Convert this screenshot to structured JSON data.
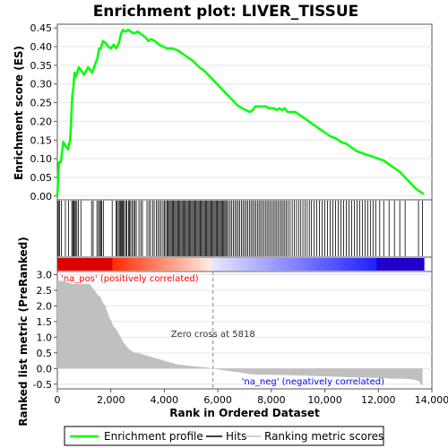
{
  "chart_data": {
    "type": "line",
    "title": "Enrichment plot: LIVER_TISSUE",
    "top_panel": {
      "ylabel": "Enrichment score (ES)",
      "ylim": [
        -0.01,
        0.46
      ],
      "yticks": [
        "0.00",
        "0.05",
        "0.10",
        "0.15",
        "0.20",
        "0.25",
        "0.30",
        "0.35",
        "0.40",
        "0.45"
      ],
      "series": [
        {
          "name": "Enrichment profile",
          "color": "#00ff00",
          "x": [
            0,
            60,
            130,
            220,
            300,
            400,
            480,
            520,
            560,
            600,
            640,
            700,
            800,
            900,
            1000,
            1150,
            1300,
            1400,
            1500,
            1560,
            1620,
            1700,
            1800,
            1900,
            2000,
            2100,
            2200,
            2300,
            2380,
            2450,
            2550,
            2650,
            2750,
            2850,
            3000,
            3100,
            3200,
            3300,
            3400,
            3500,
            3650,
            3800,
            3950,
            4100,
            4300,
            4500,
            4700,
            4900,
            5100,
            5300,
            5500,
            5700,
            5900,
            6100,
            6300,
            6500,
            6700,
            6900,
            7050,
            7200,
            7300,
            7400,
            7500,
            7600,
            7700,
            7800,
            7900,
            8000,
            8100,
            8200,
            8300,
            8400,
            8500,
            8600,
            8700,
            8800,
            8900,
            9000,
            9100,
            9200,
            9400,
            9600,
            9800,
            10000,
            10200,
            10400,
            10600,
            10800,
            11000,
            11200,
            11400,
            11600,
            11800,
            12000,
            12200,
            12400,
            12600,
            12800,
            13000,
            13200,
            13400,
            13600,
            13700
          ],
          "y": [
            0.0,
            0.09,
            0.09,
            0.145,
            0.135,
            0.125,
            0.15,
            0.21,
            0.27,
            0.29,
            0.33,
            0.32,
            0.345,
            0.335,
            0.325,
            0.345,
            0.33,
            0.35,
            0.37,
            0.395,
            0.395,
            0.415,
            0.41,
            0.4,
            0.395,
            0.405,
            0.395,
            0.41,
            0.435,
            0.445,
            0.44,
            0.445,
            0.44,
            0.435,
            0.44,
            0.435,
            0.43,
            0.425,
            0.415,
            0.42,
            0.415,
            0.405,
            0.4,
            0.395,
            0.395,
            0.39,
            0.38,
            0.37,
            0.36,
            0.345,
            0.335,
            0.32,
            0.305,
            0.29,
            0.275,
            0.26,
            0.245,
            0.235,
            0.23,
            0.225,
            0.23,
            0.24,
            0.24,
            0.24,
            0.24,
            0.24,
            0.235,
            0.235,
            0.235,
            0.23,
            0.235,
            0.23,
            0.235,
            0.225,
            0.225,
            0.225,
            0.225,
            0.22,
            0.215,
            0.21,
            0.2,
            0.19,
            0.18,
            0.17,
            0.16,
            0.155,
            0.145,
            0.14,
            0.13,
            0.12,
            0.115,
            0.11,
            0.105,
            0.1,
            0.095,
            0.085,
            0.075,
            0.065,
            0.05,
            0.035,
            0.02,
            0.01,
            0.005
          ]
        }
      ]
    },
    "hits_panel": {
      "legend_name": "Hits",
      "hit_ranks": [
        10,
        40,
        80,
        150,
        300,
        420,
        540,
        580,
        610,
        640,
        680,
        730,
        790,
        880,
        1280,
        1340,
        1480,
        1540,
        1580,
        1630,
        1660,
        1720,
        2050,
        2200,
        2230,
        2280,
        2320,
        2360,
        2400,
        2430,
        2470,
        2500,
        2560,
        2600,
        2660,
        2700,
        2740,
        2800,
        2850,
        2900,
        2950,
        3050,
        3120,
        3180,
        3350,
        3420,
        3480,
        3560,
        3620,
        3700,
        3760,
        3820,
        3880,
        3950,
        4000,
        4050,
        4100,
        4140,
        4180,
        4220,
        4260,
        4300,
        4340,
        4380,
        4420,
        4460,
        4500,
        4540,
        4580,
        4620,
        4660,
        4700,
        4740,
        4780,
        4820,
        4860,
        4900,
        4940,
        4980,
        5020,
        5060,
        5100,
        5140,
        5180,
        5220,
        5260,
        5300,
        5340,
        5380,
        5420,
        5460,
        5500,
        5540,
        5580,
        5620,
        5660,
        5700,
        5740,
        5780,
        5820,
        5860,
        5900,
        5940,
        5980,
        6020,
        6060,
        6100,
        6140,
        6180,
        6220,
        6260,
        6300,
        6340,
        6400,
        6460,
        6520,
        6580,
        6640,
        6700,
        6760,
        6820,
        6880,
        6940,
        7000,
        7060,
        7120,
        7180,
        7240,
        7300,
        7360,
        7420,
        7480,
        7540,
        7600,
        7660,
        7720,
        7780,
        7840,
        7900,
        7960,
        8020,
        8080,
        8140,
        8200,
        8260,
        8320,
        8380,
        8440,
        8500,
        8560,
        8620,
        8700,
        8780,
        8860,
        8940,
        9020,
        9100,
        9180,
        9260,
        9340,
        9420,
        9500,
        9600,
        9700,
        9800,
        9900,
        10000,
        10100,
        10200,
        10300,
        10400,
        10500,
        10600,
        10700,
        10800,
        10900,
        11000,
        11100,
        11200,
        11300,
        11400,
        11500,
        11600,
        11700,
        11800,
        11900,
        12050,
        12200,
        12400,
        12600,
        12800,
        13000,
        13500,
        13650
      ]
    },
    "ranked_panel": {
      "ylabel": "Ranked list metric (PreRanked)",
      "xlabel": "Rank in Ordered Dataset",
      "xlim": [
        0,
        14000
      ],
      "xticks": [
        0,
        2000,
        4000,
        6000,
        8000,
        10000,
        12000,
        14000
      ],
      "xtick_labels": [
        "0",
        "2,000",
        "4,000",
        "6,000",
        "8,000",
        "10,000",
        "12,000",
        "14,000"
      ],
      "ylim": [
        -0.65,
        3.1
      ],
      "yticks": [
        "3.0",
        "2.5",
        "2.0",
        "1.5",
        "1.0",
        "0.5",
        "0.0",
        "-0.5"
      ],
      "metric_x": [
        0,
        200,
        400,
        600,
        800,
        1000,
        1200,
        1400,
        1500,
        1600,
        1700,
        1800,
        1850,
        1900,
        1950,
        2000,
        2050,
        2100,
        2200,
        2300,
        2400,
        2500,
        2600,
        2700,
        2800,
        2900,
        3000,
        3200,
        3400,
        3600,
        3800,
        4000,
        4200,
        4400,
        4600,
        4800,
        5000,
        5200,
        5400,
        5600,
        5818,
        6000,
        6200,
        6400,
        6600,
        6800,
        7000,
        7200,
        7500,
        8000,
        9000,
        10000,
        11000,
        12000,
        12500,
        13000,
        13300,
        13500,
        13650
      ],
      "metric_y": [
        2.8,
        2.8,
        2.75,
        2.7,
        2.7,
        2.7,
        2.7,
        2.5,
        2.35,
        2.3,
        2.1,
        2.0,
        1.85,
        1.75,
        1.6,
        1.55,
        1.45,
        1.35,
        1.25,
        1.1,
        0.95,
        0.8,
        0.7,
        0.6,
        0.55,
        0.5,
        0.5,
        0.45,
        0.4,
        0.35,
        0.3,
        0.25,
        0.2,
        0.15,
        0.12,
        0.1,
        0.08,
        0.06,
        0.05,
        0.03,
        0.0,
        -0.03,
        -0.05,
        -0.08,
        -0.1,
        -0.12,
        -0.15,
        -0.18,
        -0.2,
        -0.2,
        -0.22,
        -0.25,
        -0.28,
        -0.3,
        -0.32,
        -0.33,
        -0.35,
        -0.4,
        -0.55
      ],
      "metric_color": "#c0c0c0",
      "zero_cross_label": "Zero cross at 5818",
      "zero_cross_x": 5818,
      "pos_label": "'na_pos' (positively correlated)",
      "pos_color": "#ff0000",
      "neg_label": "'na_neg' (negatively correlated)",
      "neg_color": "#0000ff"
    },
    "legend": {
      "items": [
        {
          "label": "Enrichment profile",
          "color": "#00ff00"
        },
        {
          "label": "Hits",
          "color": "#000000"
        },
        {
          "label": "Ranking metric scores",
          "color": "#c0c0c0"
        }
      ]
    }
  }
}
